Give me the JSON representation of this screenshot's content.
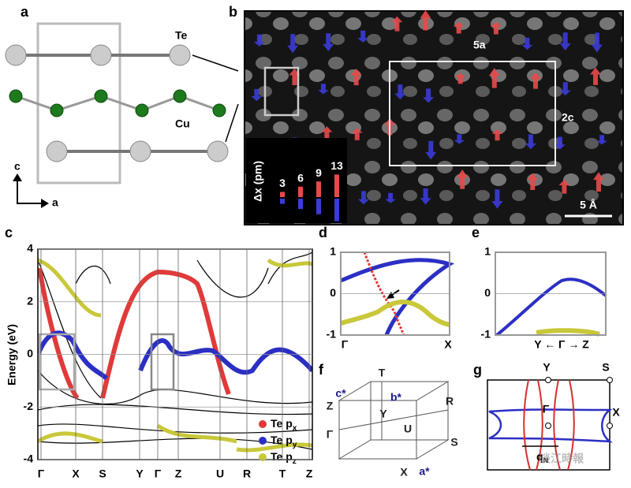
{
  "panels": {
    "a": {
      "label": "a",
      "atoms": [
        "Te",
        "Cu"
      ],
      "axes": [
        "c",
        "a"
      ]
    },
    "b": {
      "label": "b",
      "annotations": [
        "5a",
        "2c"
      ],
      "legend_title": "Δx (pm)",
      "legend_values": [
        3,
        6,
        9,
        13
      ],
      "scale_bar": "5 Å"
    },
    "c": {
      "label": "c",
      "y_label": "Energy (eV)",
      "ylim": [
        -4,
        4
      ],
      "yticks": [
        4,
        2,
        0,
        -2,
        -4
      ],
      "k_path": [
        "Γ",
        "X",
        "S",
        "Y",
        "Γ",
        "Z",
        "U",
        "R",
        "T",
        "Z"
      ],
      "legend": [
        {
          "text": "Te p",
          "subscript": "x",
          "color": "#e03a3a"
        },
        {
          "text": "Te p",
          "subscript": "y",
          "color": "#2b2fc4"
        },
        {
          "text": "Te p",
          "subscript": "z",
          "color": "#c8c83a"
        }
      ]
    },
    "d": {
      "label": "d",
      "ylim": [
        -1,
        1
      ],
      "yticks": [
        1,
        0,
        -1
      ],
      "k_path": [
        "Γ",
        "X"
      ]
    },
    "e": {
      "label": "e",
      "ylim": [
        -1,
        1
      ],
      "yticks": [
        1,
        0,
        -1
      ],
      "k_path": "Y ← Γ → Z"
    },
    "f": {
      "label": "f",
      "points": [
        "T",
        "Z",
        "c*",
        "b*",
        "Y",
        "R",
        "Γ",
        "U",
        "S",
        "X",
        "a*"
      ]
    },
    "g": {
      "label": "g",
      "points": [
        "Y",
        "S",
        "Γ",
        "X"
      ],
      "vector": {
        "text": "q",
        "subscript": "N"
      }
    }
  },
  "watermark": "淡江時報"
}
